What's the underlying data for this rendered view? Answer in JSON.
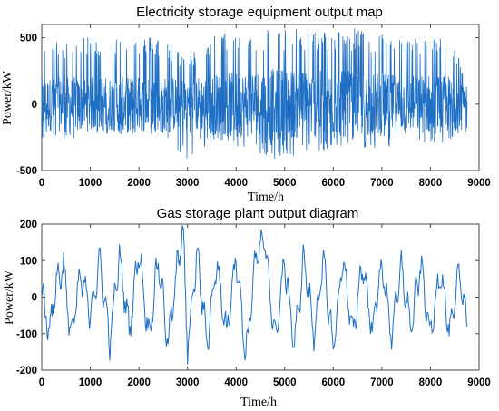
{
  "chart_data": [
    {
      "type": "line",
      "title": "Electricity storage equipment output map",
      "xlabel": "Time/h",
      "ylabel": "Power/kW",
      "xlim": [
        0,
        9000
      ],
      "ylim": [
        -500,
        600
      ],
      "xticks": [
        0,
        1000,
        2000,
        3000,
        4000,
        5000,
        6000,
        7000,
        8000,
        9000
      ],
      "yticks": [
        -500,
        0,
        500
      ],
      "grid": false,
      "line_color": "#1f6fc5",
      "series": [
        {
          "x_range": [
            0,
            8760
          ],
          "x_step": 1,
          "description_free_values_sampled": true,
          "sample_envelope": [
            {
              "x": 0,
              "min": -260,
              "max": 480
            },
            {
              "x": 500,
              "min": -280,
              "max": 470
            },
            {
              "x": 1000,
              "min": -240,
              "max": 510
            },
            {
              "x": 1500,
              "min": -230,
              "max": 520
            },
            {
              "x": 2000,
              "min": -250,
              "max": 520
            },
            {
              "x": 2500,
              "min": -240,
              "max": 510
            },
            {
              "x": 3000,
              "min": -420,
              "max": 360
            },
            {
              "x": 3500,
              "min": -300,
              "max": 520
            },
            {
              "x": 4000,
              "min": -330,
              "max": 560
            },
            {
              "x": 4500,
              "min": -400,
              "max": 580
            },
            {
              "x": 5000,
              "min": -420,
              "max": 580
            },
            {
              "x": 5500,
              "min": -380,
              "max": 560
            },
            {
              "x": 6000,
              "min": -350,
              "max": 560
            },
            {
              "x": 6500,
              "min": -330,
              "max": 580
            },
            {
              "x": 7000,
              "min": -330,
              "max": 540
            },
            {
              "x": 7500,
              "min": -300,
              "max": 490
            },
            {
              "x": 8000,
              "min": -300,
              "max": 530
            },
            {
              "x": 8500,
              "min": -280,
              "max": 490
            },
            {
              "x": 8760,
              "min": -200,
              "max": 120
            }
          ]
        }
      ]
    },
    {
      "type": "line",
      "title": "Gas storage plant output diagram",
      "xlabel": "Time/h",
      "ylabel": "Power/kW",
      "xlim": [
        0,
        9000
      ],
      "ylim": [
        -200,
        200
      ],
      "xticks": [
        0,
        1000,
        2000,
        3000,
        4000,
        5000,
        6000,
        7000,
        8000,
        9000
      ],
      "yticks": [
        -200,
        -100,
        0,
        100,
        200
      ],
      "grid": false,
      "line_color": "#1f6fc5",
      "series": [
        {
          "x_range": [
            0,
            8760
          ],
          "sample_points": [
            {
              "x": 0,
              "y": 20
            },
            {
              "x": 150,
              "y": -95
            },
            {
              "x": 300,
              "y": 40
            },
            {
              "x": 450,
              "y": 85
            },
            {
              "x": 600,
              "y": -110
            },
            {
              "x": 800,
              "y": 60
            },
            {
              "x": 1000,
              "y": -40
            },
            {
              "x": 1200,
              "y": 95
            },
            {
              "x": 1400,
              "y": -120
            },
            {
              "x": 1600,
              "y": 110
            },
            {
              "x": 1800,
              "y": -90
            },
            {
              "x": 2000,
              "y": 130
            },
            {
              "x": 2200,
              "y": -110
            },
            {
              "x": 2400,
              "y": 105
            },
            {
              "x": 2600,
              "y": -130
            },
            {
              "x": 2800,
              "y": 90
            },
            {
              "x": 2900,
              "y": 200
            },
            {
              "x": 3000,
              "y": -140
            },
            {
              "x": 3200,
              "y": 120
            },
            {
              "x": 3400,
              "y": -125
            },
            {
              "x": 3600,
              "y": 95
            },
            {
              "x": 3800,
              "y": -100
            },
            {
              "x": 4000,
              "y": 120
            },
            {
              "x": 4200,
              "y": -165
            },
            {
              "x": 4400,
              "y": 110
            },
            {
              "x": 4600,
              "y": 150
            },
            {
              "x": 4800,
              "y": -120
            },
            {
              "x": 5000,
              "y": 95
            },
            {
              "x": 5200,
              "y": -130
            },
            {
              "x": 5400,
              "y": 110
            },
            {
              "x": 5600,
              "y": -100
            },
            {
              "x": 5800,
              "y": 95
            },
            {
              "x": 6000,
              "y": -140
            },
            {
              "x": 6200,
              "y": 110
            },
            {
              "x": 6400,
              "y": -110
            },
            {
              "x": 6600,
              "y": 95
            },
            {
              "x": 6800,
              "y": -90
            },
            {
              "x": 7000,
              "y": 90
            },
            {
              "x": 7200,
              "y": -100
            },
            {
              "x": 7400,
              "y": 80
            },
            {
              "x": 7600,
              "y": -85
            },
            {
              "x": 7800,
              "y": 90
            },
            {
              "x": 8000,
              "y": -110
            },
            {
              "x": 8200,
              "y": 80
            },
            {
              "x": 8400,
              "y": -105
            },
            {
              "x": 8600,
              "y": 70
            },
            {
              "x": 8760,
              "y": -80
            }
          ]
        }
      ]
    }
  ]
}
